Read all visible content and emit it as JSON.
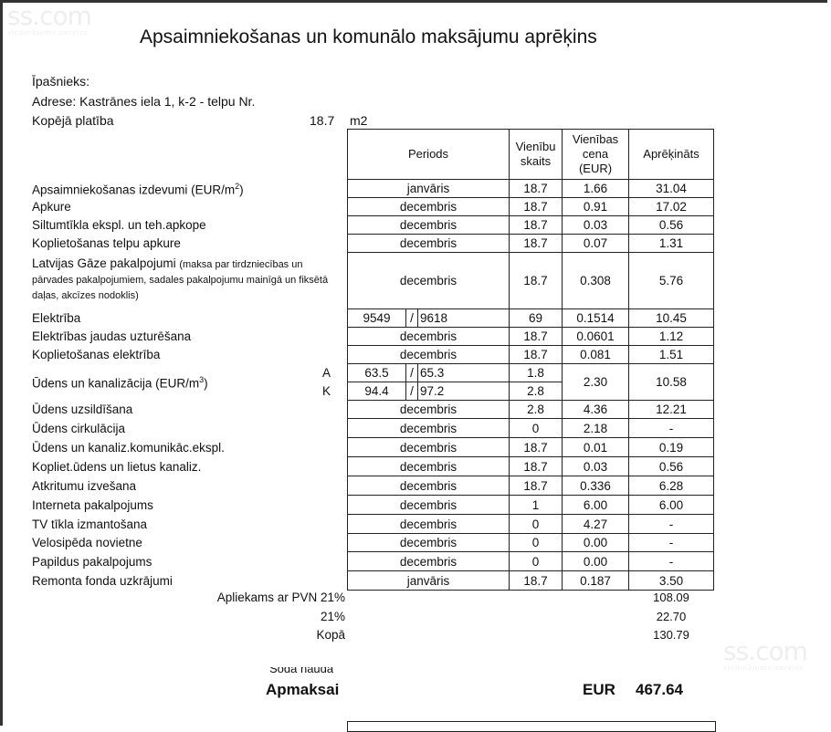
{
  "watermark": {
    "brand": "ss.com",
    "tagline": "sludinājumu serviss"
  },
  "title": "Apsaimniekošanas un komunālo maksājumu aprēķins",
  "owner_label": "Īpašnieks:",
  "address": "Adrese: Kastrānes iela 1, k-2 - telpu Nr.",
  "area": {
    "label": "Kopējā platība",
    "value": "18.7",
    "unit": "m2"
  },
  "headers": {
    "period": "Periods",
    "units_count": "Vienību skaits",
    "unit_price": "Vienības cena (EUR)",
    "calculated": "Aprēķināts"
  },
  "rows": [
    {
      "label": "Apsaimniekošanas izdevumi (EUR/m",
      "sup": "2",
      "tail": ")",
      "period": "janvāris",
      "qty": "18.7",
      "price": "1.66",
      "total": "31.04"
    },
    {
      "label": "Apkure",
      "period": "decembris",
      "qty": "18.7",
      "price": "0.91",
      "total": "17.02"
    },
    {
      "label": "Siltumtīkla ekspl. un teh.apkope",
      "period": "decembris",
      "qty": "18.7",
      "price": "0.03",
      "total": "0.56"
    },
    {
      "label": "Koplietošanas telpu apkure",
      "period": "decembris",
      "qty": "18.7",
      "price": "0.07",
      "total": "1.31"
    },
    {
      "label": "Latvijas Gāze pakalpojumi",
      "note": "(maksa par tirdzniecības un pārvades pakalpojumiem, sadales pakalpojumu mainīgā un fiksētā daļas, akcīzes nodoklis)",
      "period": "decembris",
      "qty": "18.7",
      "price": "0.308",
      "total": "5.76"
    },
    {
      "label": "Elektrība",
      "reading_from": "9549",
      "reading_to": "9618",
      "qty": "69",
      "price": "0.1514",
      "total": "10.45"
    },
    {
      "label": "Elektrības jaudas uzturēšana",
      "period": "decembris",
      "qty": "18.7",
      "price": "0.0601",
      "total": "1.12"
    },
    {
      "label": "Koplietošanas elektrība",
      "period": "decembris",
      "qty": "18.7",
      "price": "0.081",
      "total": "1.51"
    },
    {
      "label": "Ūdens un kanalizācija (EUR/m",
      "sup": "3",
      "tail": ")",
      "water": [
        {
          "marker": "A",
          "reading_from": "63.5",
          "reading_to": "65.3",
          "qty": "1.8"
        },
        {
          "marker": "K",
          "reading_from": "94.4",
          "reading_to": "97.2",
          "qty": "2.8"
        }
      ],
      "price": "2.30",
      "total": "10.58"
    },
    {
      "label": "Ūdens uzsildīšana",
      "period": "decembris",
      "qty": "2.8",
      "price": "4.36",
      "total": "12.21"
    },
    {
      "label": "Ūdens cirkulācija",
      "period": "decembris",
      "qty": "0",
      "price": "2.18",
      "total": "-"
    },
    {
      "label": "Ūdens un kanaliz.komunikāc.ekspl.",
      "period": "decembris",
      "qty": "18.7",
      "price": "0.01",
      "total": "0.19"
    },
    {
      "label": "Kopliet.ūdens un lietus kanaliz.",
      "period": "decembris",
      "qty": "18.7",
      "price": "0.03",
      "total": "0.56"
    },
    {
      "label": "Atkritumu izvešana",
      "period": "decembris",
      "qty": "18.7",
      "price": "0.336",
      "total": "6.28"
    },
    {
      "label": "Interneta pakalpojums",
      "period": "decembris",
      "qty": "1",
      "price": "6.00",
      "total": "6.00"
    },
    {
      "label": "TV tīkla izmantošana",
      "period": "decembris",
      "qty": "0",
      "price": "4.27",
      "total": "-"
    },
    {
      "label": "Velosipēda novietne",
      "period": "decembris",
      "qty": "0",
      "price": "0.00",
      "total": "-"
    },
    {
      "label": "Papildus pakalpojums",
      "period": "decembris",
      "qty": "0",
      "price": "0.00",
      "total": "-"
    },
    {
      "label": "Remonta fonda uzkrājumi",
      "period": "janvāris",
      "qty": "18.7",
      "price": "0.187",
      "total": "3.50"
    }
  ],
  "totals": [
    {
      "label": "Apliekams ar PVN 21%",
      "value": "108.09"
    },
    {
      "label": "21%",
      "value": "22.70"
    },
    {
      "label": "Kopā",
      "value": "130.79"
    }
  ],
  "penalty_label": "Soda nauda",
  "payable": {
    "label": "Apmaksai",
    "currency": "EUR",
    "value": "467.64"
  }
}
